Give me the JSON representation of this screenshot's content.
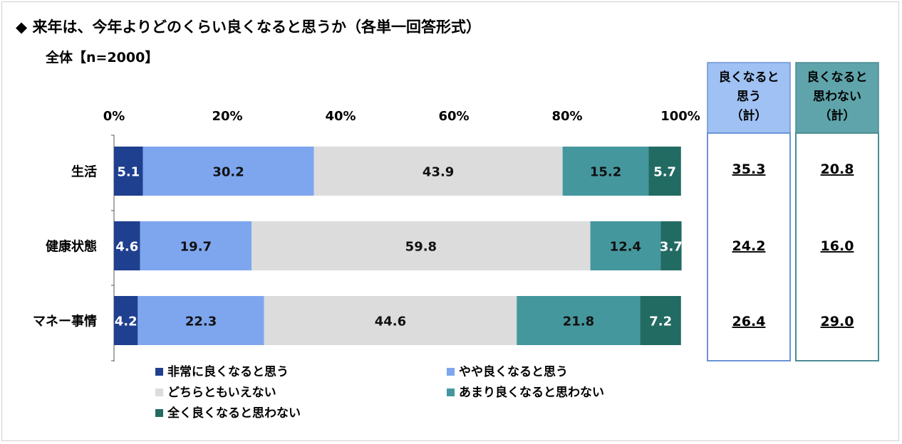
{
  "title": "◆ 来年は、今年よりどのくらい良くなると思うか（各単一回答形式）",
  "subtitle": "全体【n=2000】",
  "chart_data": {
    "type": "bar",
    "orientation": "horizontal",
    "stacked": true,
    "xlim": [
      0,
      100
    ],
    "x_ticks": [
      "0%",
      "20%",
      "40%",
      "60%",
      "80%",
      "100%"
    ],
    "categories": [
      "生活",
      "健康状態",
      "マネー事情"
    ],
    "series": [
      {
        "name": "非常に良くなると思う",
        "color": "#1f3f8f",
        "values": [
          5.1,
          4.6,
          4.2
        ]
      },
      {
        "name": "やや良くなると思う",
        "color": "#7ea6ef",
        "values": [
          30.2,
          19.7,
          22.3
        ]
      },
      {
        "name": "どちらともいえない",
        "color": "#dcdcdc",
        "values": [
          43.9,
          59.8,
          44.6
        ]
      },
      {
        "name": "あまり良くなると思わない",
        "color": "#45979e",
        "values": [
          15.2,
          12.4,
          21.8
        ]
      },
      {
        "name": "全く良くなると思わない",
        "color": "#226b63",
        "values": [
          5.7,
          3.7,
          7.2
        ]
      }
    ],
    "legend_position": "bottom",
    "summary_boxes": [
      {
        "header": [
          "良くなると",
          "思う",
          "（計）"
        ],
        "header_color": "#9fc1f3",
        "border_color": "#6b93d6",
        "values": [
          "35.3",
          "24.2",
          "26.4"
        ]
      },
      {
        "header": [
          "良くなると",
          "思わない",
          "（計）"
        ],
        "header_color": "#5fa4ab",
        "border_color": "#4c8c92",
        "values": [
          "20.8",
          "16.0",
          "29.0"
        ]
      }
    ]
  }
}
